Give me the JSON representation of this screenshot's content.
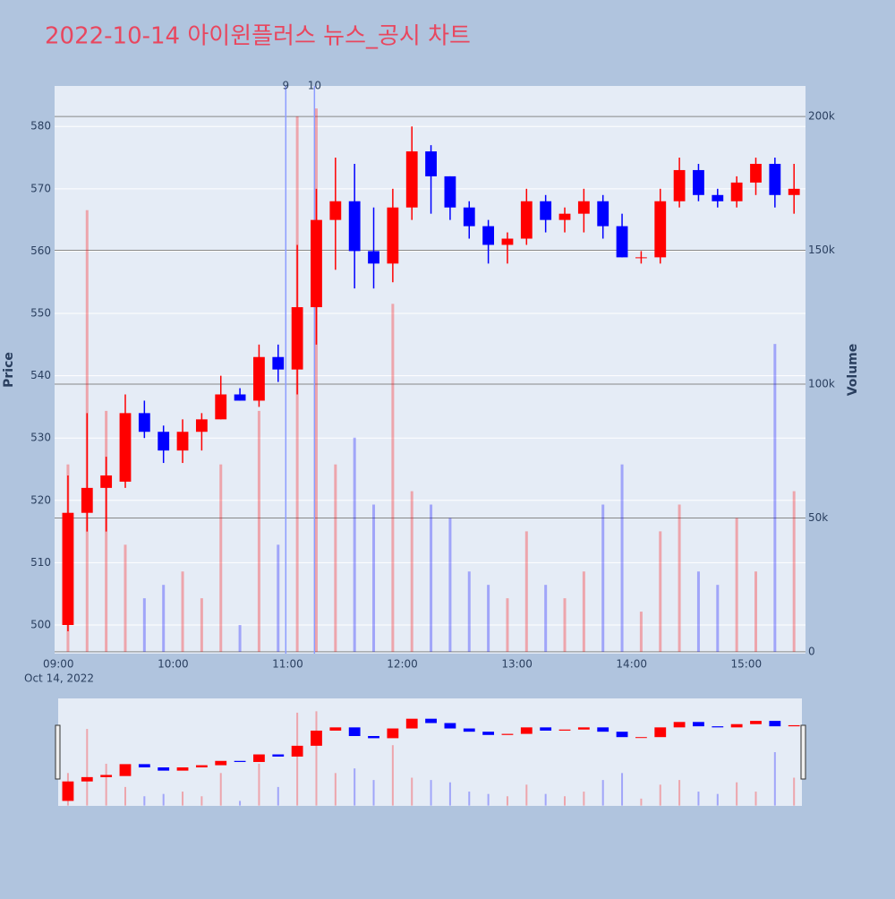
{
  "chart_data": {
    "type": "candlestick",
    "title": "2022-10-14 아이윈플러스 뉴스_공시 차트",
    "y_label": "Price",
    "y2_label": "Volume",
    "x_date_label": "Oct 14, 2022",
    "x": [
      "09:00",
      "09:10",
      "09:20",
      "09:30",
      "09:40",
      "09:50",
      "10:00",
      "10:10",
      "10:20",
      "10:30",
      "10:40",
      "10:50",
      "11:00",
      "11:10",
      "11:20",
      "11:30",
      "11:40",
      "11:50",
      "12:00",
      "12:10",
      "12:20",
      "12:30",
      "12:40",
      "12:50",
      "13:00",
      "13:10",
      "13:20",
      "13:30",
      "13:40",
      "13:50",
      "14:00",
      "14:10",
      "14:20",
      "14:30",
      "14:40",
      "14:50",
      "15:00",
      "15:10",
      "15:20"
    ],
    "open": [
      500,
      518,
      522,
      523,
      534,
      531,
      528,
      531,
      533,
      537,
      536,
      543,
      541,
      551,
      565,
      568,
      560,
      558,
      567,
      576,
      572,
      567,
      564,
      561,
      562,
      568,
      565,
      566,
      568,
      564,
      559,
      559,
      568,
      573,
      569,
      568,
      571,
      574,
      569
    ],
    "high": [
      524,
      534,
      527,
      537,
      536,
      532,
      533,
      534,
      540,
      538,
      545,
      545,
      561,
      570,
      575,
      574,
      567,
      570,
      580,
      577,
      572,
      568,
      565,
      563,
      570,
      569,
      567,
      570,
      569,
      566,
      560,
      570,
      575,
      574,
      570,
      572,
      575,
      575,
      574
    ],
    "low": [
      499,
      515,
      515,
      522,
      530,
      526,
      526,
      528,
      533,
      536,
      535,
      539,
      537,
      545,
      557,
      554,
      554,
      555,
      565,
      566,
      565,
      562,
      558,
      558,
      561,
      563,
      563,
      563,
      562,
      559,
      558,
      558,
      567,
      568,
      567,
      567,
      569,
      567,
      566
    ],
    "close": [
      518,
      522,
      524,
      534,
      531,
      528,
      531,
      533,
      537,
      536,
      543,
      541,
      551,
      565,
      568,
      560,
      558,
      567,
      576,
      572,
      567,
      564,
      561,
      562,
      568,
      565,
      566,
      568,
      564,
      559,
      559,
      568,
      573,
      569,
      568,
      571,
      574,
      569,
      570
    ],
    "volume": [
      70000,
      165000,
      90000,
      40000,
      20000,
      25000,
      30000,
      20000,
      70000,
      10000,
      90000,
      40000,
      200000,
      203000,
      70000,
      80000,
      55000,
      130000,
      60000,
      55000,
      50000,
      30000,
      25000,
      20000,
      45000,
      25000,
      20000,
      30000,
      55000,
      70000,
      15000,
      45000,
      55000,
      30000,
      25000,
      50000,
      30000,
      115000,
      60000
    ],
    "up_color": "#ff0000",
    "down_color": "#0000ff",
    "xlim": [
      "08:58",
      "15:31"
    ],
    "xticks": [
      "09:00",
      "10:00",
      "11:00",
      "12:00",
      "13:00",
      "14:00",
      "15:00"
    ],
    "ylim": [
      495.4,
      586.5
    ],
    "yticks": [
      500,
      510,
      520,
      530,
      540,
      550,
      560,
      570,
      580
    ],
    "y2lim": [
      -700,
      211400
    ],
    "y2ticks": [
      {
        "value": 0,
        "label": "0"
      },
      {
        "value": 50000,
        "label": "50k"
      },
      {
        "value": 100000,
        "label": "100k"
      },
      {
        "value": 150000,
        "label": "150k"
      },
      {
        "value": 200000,
        "label": "200k"
      }
    ],
    "annotations": [
      {
        "x": "10:59",
        "text": "9"
      },
      {
        "x": "11:14",
        "text": "10"
      }
    ]
  }
}
